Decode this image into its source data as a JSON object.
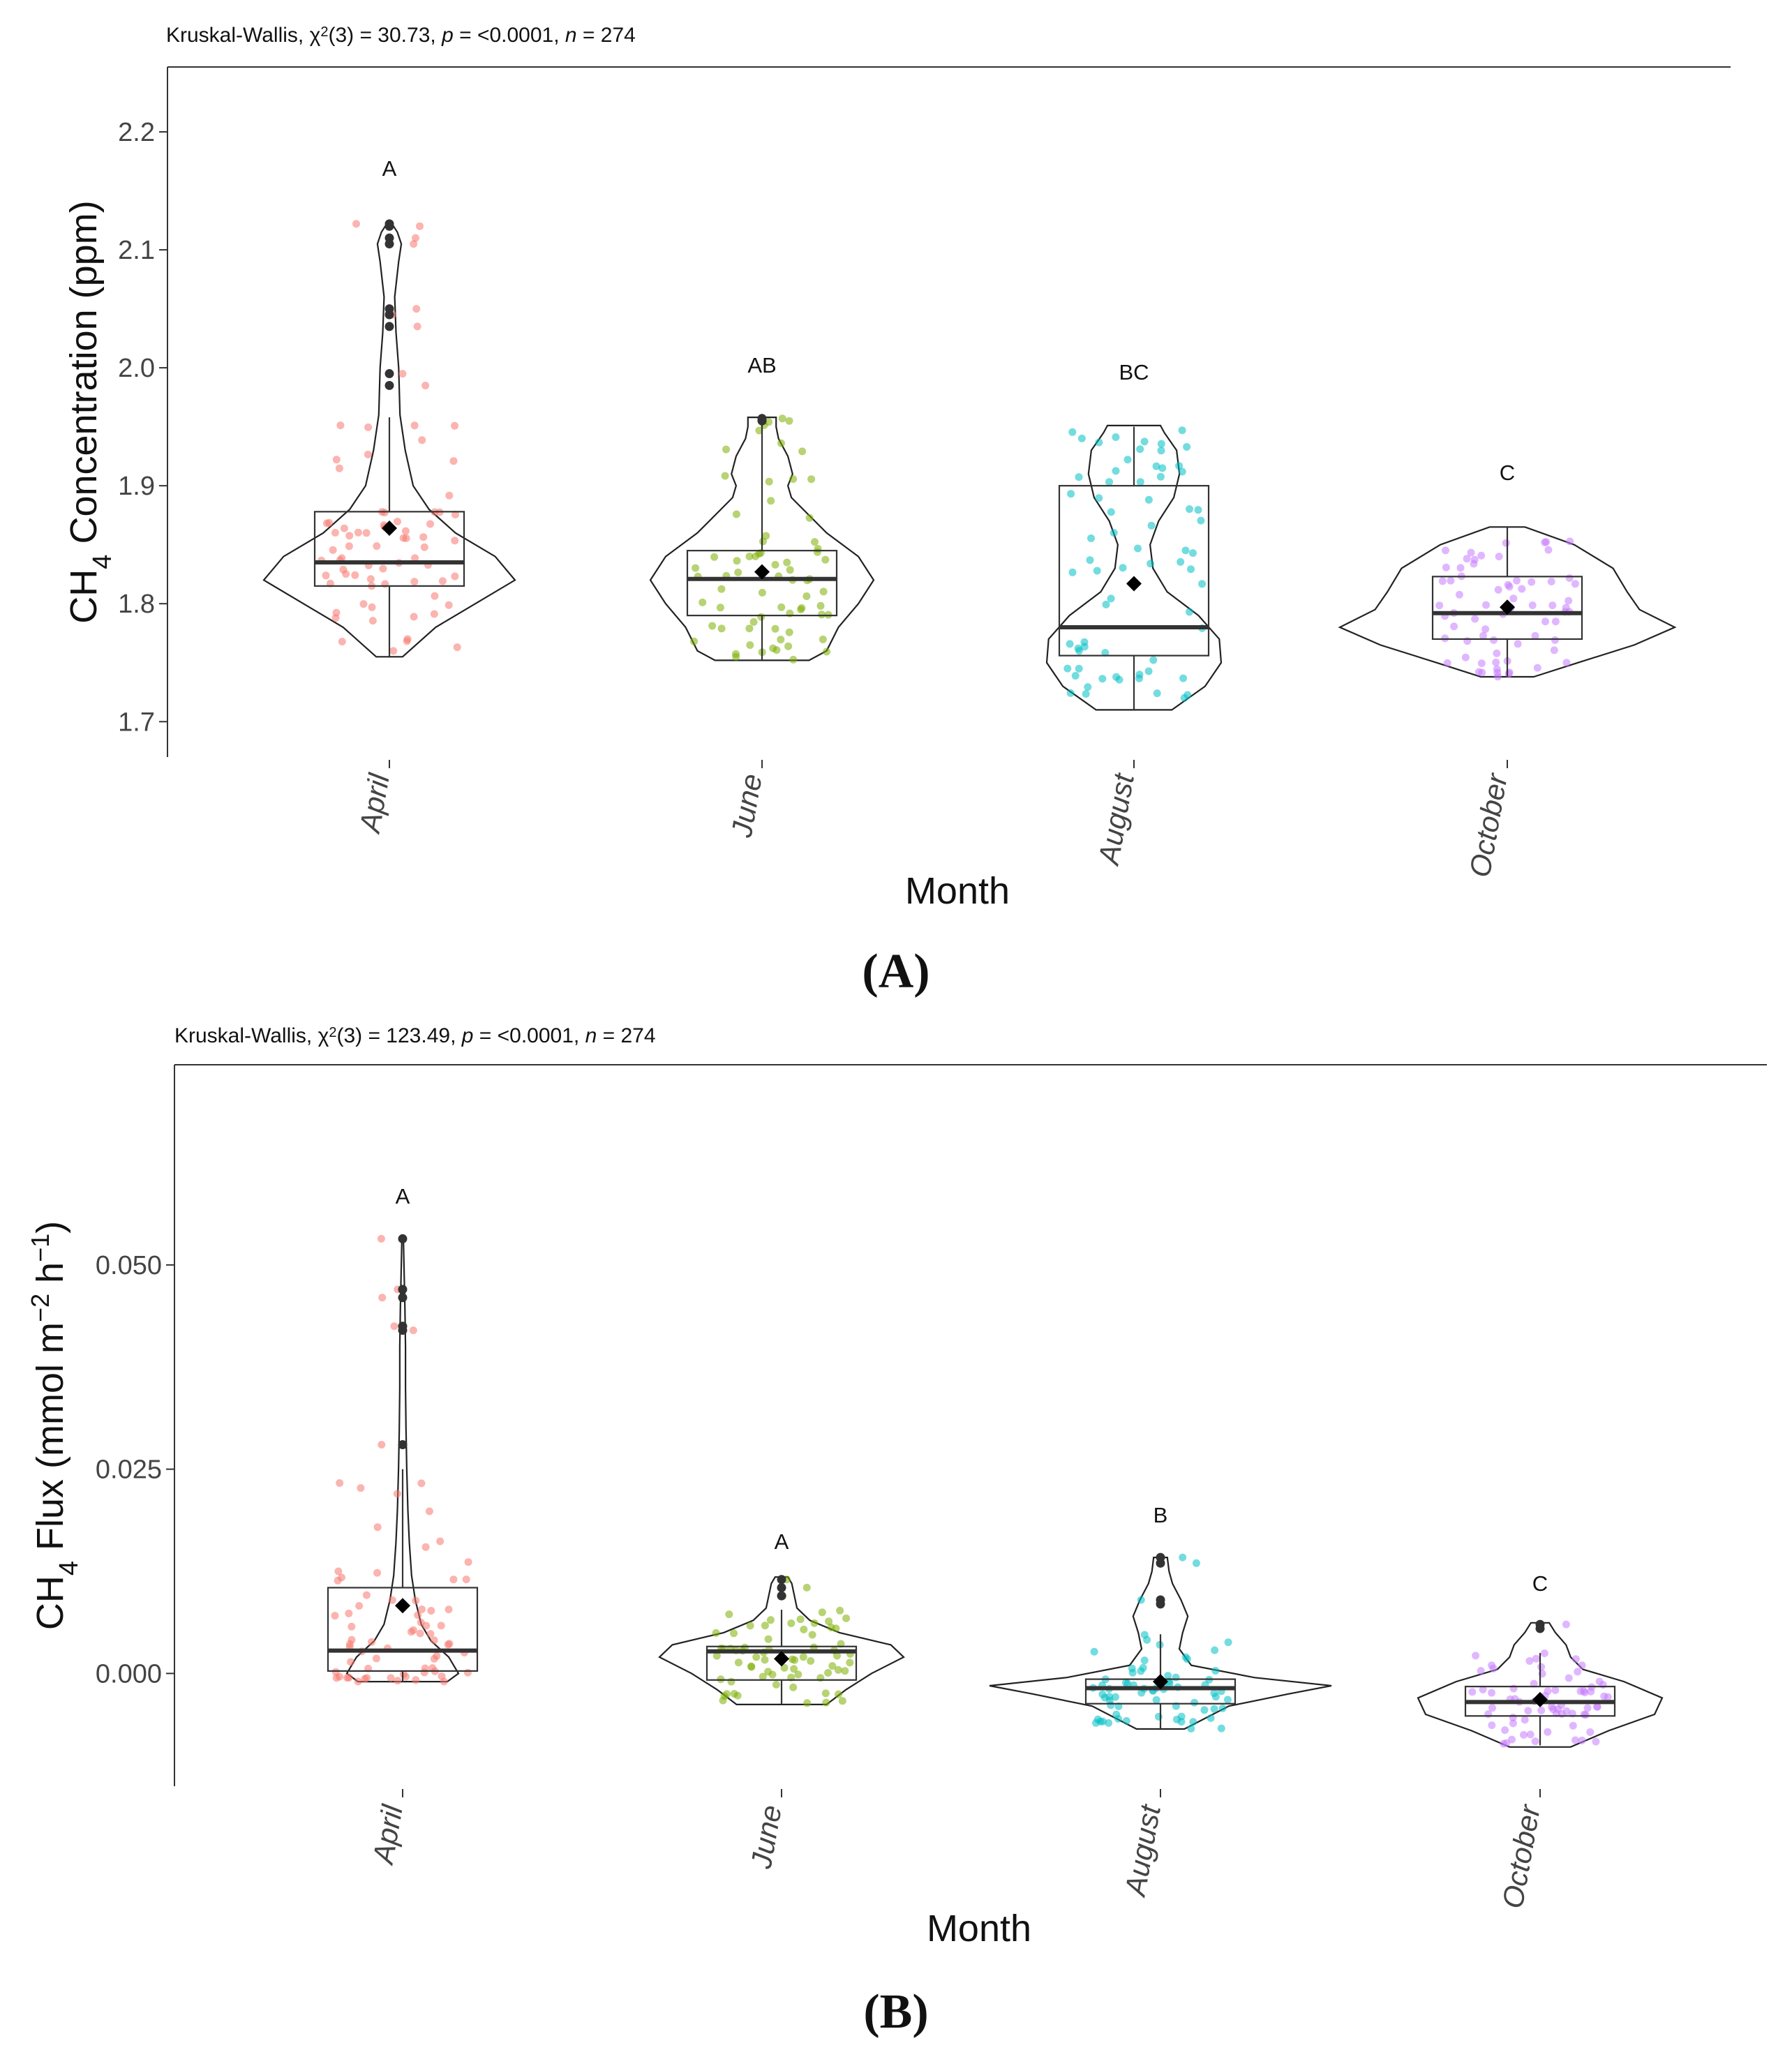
{
  "chart_data": [
    {
      "type": "violin",
      "panel_label": "(A)",
      "stat_parts": [
        "Kruskal-Wallis, ",
        "χ",
        "2",
        "(3) = 30.73, ",
        "p",
        " = <0.0001, ",
        "n",
        " = 274"
      ],
      "ylabel_parts": [
        "CH",
        "4",
        " Concentration (ppm)"
      ],
      "xlabel": "Month",
      "ylim": [
        1.67,
        2.255
      ],
      "yticks": [
        1.7,
        1.8,
        1.9,
        2.0,
        2.1,
        2.2
      ],
      "ytick_labels": [
        "1.7",
        "1.8",
        "1.9",
        "2.0",
        "2.1",
        "2.2"
      ],
      "categories": [
        "April",
        "June",
        "August",
        "October"
      ],
      "colors": [
        "#F8766D",
        "#7CAE00",
        "#00BFC4",
        "#C77CFF"
      ],
      "groups": [
        {
          "name": "April",
          "letter": "A",
          "min": 1.755,
          "q1": 1.815,
          "median": 1.835,
          "q3": 1.878,
          "max": 1.958,
          "mean": 1.864,
          "outliers": [
            1.985,
            1.995,
            2.035,
            2.045,
            2.05,
            2.105,
            2.11,
            2.12,
            2.122
          ],
          "violin": [
            [
              1.755,
              0.1
            ],
            [
              1.78,
              0.35
            ],
            [
              1.8,
              0.65
            ],
            [
              1.82,
              0.95
            ],
            [
              1.84,
              0.8
            ],
            [
              1.86,
              0.5
            ],
            [
              1.88,
              0.3
            ],
            [
              1.9,
              0.18
            ],
            [
              1.93,
              0.12
            ],
            [
              1.96,
              0.08
            ],
            [
              2.0,
              0.07
            ],
            [
              2.03,
              0.05
            ],
            [
              2.06,
              0.04
            ],
            [
              2.09,
              0.07
            ],
            [
              2.105,
              0.09
            ],
            [
              2.115,
              0.06
            ],
            [
              2.122,
              0.02
            ]
          ]
        },
        {
          "name": "June",
          "letter": "AB",
          "min": 1.752,
          "q1": 1.79,
          "median": 1.821,
          "q3": 1.845,
          "max": 1.955,
          "mean": 1.827,
          "outliers": [
            1.955,
            1.957
          ],
          "violin": [
            [
              1.752,
              0.4
            ],
            [
              1.76,
              0.55
            ],
            [
              1.78,
              0.65
            ],
            [
              1.8,
              0.82
            ],
            [
              1.82,
              0.95
            ],
            [
              1.84,
              0.82
            ],
            [
              1.86,
              0.55
            ],
            [
              1.88,
              0.35
            ],
            [
              1.89,
              0.25
            ],
            [
              1.9,
              0.22
            ],
            [
              1.91,
              0.26
            ],
            [
              1.925,
              0.22
            ],
            [
              1.94,
              0.14
            ],
            [
              1.95,
              0.12
            ],
            [
              1.958,
              0.12
            ]
          ]
        },
        {
          "name": "August",
          "letter": "BC",
          "min": 1.71,
          "q1": 1.756,
          "median": 1.78,
          "q3": 1.9,
          "max": 1.95,
          "mean": 1.817,
          "outliers": [],
          "violin": [
            [
              1.71,
              0.4
            ],
            [
              1.73,
              0.75
            ],
            [
              1.75,
              0.92
            ],
            [
              1.77,
              0.9
            ],
            [
              1.79,
              0.68
            ],
            [
              1.81,
              0.35
            ],
            [
              1.83,
              0.2
            ],
            [
              1.85,
              0.17
            ],
            [
              1.87,
              0.26
            ],
            [
              1.89,
              0.42
            ],
            [
              1.91,
              0.48
            ],
            [
              1.93,
              0.45
            ],
            [
              1.945,
              0.32
            ],
            [
              1.951,
              0.28
            ]
          ]
        },
        {
          "name": "October",
          "letter": "C",
          "min": 1.738,
          "q1": 1.77,
          "median": 1.792,
          "q3": 1.823,
          "max": 1.865,
          "mean": 1.797,
          "outliers": [],
          "violin": [
            [
              1.738,
              0.15
            ],
            [
              1.75,
              0.4
            ],
            [
              1.765,
              0.72
            ],
            [
              1.78,
              0.95
            ],
            [
              1.795,
              0.75
            ],
            [
              1.81,
              0.68
            ],
            [
              1.83,
              0.6
            ],
            [
              1.85,
              0.38
            ],
            [
              1.865,
              0.1
            ]
          ]
        }
      ]
    },
    {
      "type": "violin",
      "panel_label": "(B)",
      "stat_parts": [
        "Kruskal-Wallis, ",
        "χ",
        "2",
        "(3) = 123.49, ",
        "p",
        " = <0.0001, ",
        "n",
        " = 274"
      ],
      "ylabel_parts": [
        "CH",
        "4",
        " Flux (mmol m",
        "−2",
        " h",
        "−1",
        ")"
      ],
      "xlabel": "Month",
      "ylim": [
        -0.0138,
        0.0745
      ],
      "yticks": [
        0.0,
        0.025,
        0.05
      ],
      "ytick_labels": [
        "0.000",
        "0.025",
        "0.050"
      ],
      "categories": [
        "April",
        "June",
        "August",
        "October"
      ],
      "colors": [
        "#F8766D",
        "#7CAE00",
        "#00BFC4",
        "#C77CFF"
      ],
      "groups": [
        {
          "name": "April",
          "letter": "A",
          "min": -0.001,
          "q1": 0.0003,
          "median": 0.0028,
          "q3": 0.0105,
          "max": 0.025,
          "mean": 0.0083,
          "outliers": [
            0.028,
            0.042,
            0.0425,
            0.046,
            0.047,
            0.0532
          ],
          "violin": [
            [
              -0.001,
              0.6
            ],
            [
              0.0,
              0.75
            ],
            [
              0.002,
              0.62
            ],
            [
              0.004,
              0.38
            ],
            [
              0.006,
              0.25
            ],
            [
              0.009,
              0.17
            ],
            [
              0.012,
              0.12
            ],
            [
              0.016,
              0.09
            ],
            [
              0.02,
              0.07
            ],
            [
              0.025,
              0.055
            ],
            [
              0.03,
              0.045
            ],
            [
              0.035,
              0.038
            ],
            [
              0.04,
              0.038
            ],
            [
              0.045,
              0.03
            ],
            [
              0.05,
              0.018
            ],
            [
              0.0532,
              0.01
            ]
          ]
        },
        {
          "name": "June",
          "letter": "A",
          "min": -0.0038,
          "q1": -0.0008,
          "median": 0.0027,
          "q3": 0.0033,
          "max": 0.0078,
          "mean": 0.0018,
          "outliers": [
            0.0095,
            0.0105,
            0.0115
          ],
          "violin": [
            [
              -0.0038,
              0.35
            ],
            [
              -0.002,
              0.5
            ],
            [
              0.0,
              0.7
            ],
            [
              0.002,
              0.95
            ],
            [
              0.0035,
              0.85
            ],
            [
              0.005,
              0.45
            ],
            [
              0.0065,
              0.22
            ],
            [
              0.008,
              0.12
            ],
            [
              0.0095,
              0.1
            ],
            [
              0.011,
              0.08
            ],
            [
              0.0118,
              0.05
            ]
          ]
        },
        {
          "name": "August",
          "letter": "B",
          "min": -0.0068,
          "q1": -0.0037,
          "median": -0.0018,
          "q3": -0.0007,
          "max": 0.0048,
          "mean": -0.001,
          "outliers": [
            0.0085,
            0.009,
            0.0135,
            0.0142
          ],
          "violin": [
            [
              -0.0068,
              0.14
            ],
            [
              -0.004,
              0.4
            ],
            [
              -0.0025,
              0.75
            ],
            [
              -0.0015,
              1.0
            ],
            [
              -0.0005,
              0.55
            ],
            [
              0.001,
              0.18
            ],
            [
              0.003,
              0.11
            ],
            [
              0.005,
              0.13
            ],
            [
              0.007,
              0.16
            ],
            [
              0.009,
              0.12
            ],
            [
              0.011,
              0.07
            ],
            [
              0.0125,
              0.05
            ],
            [
              0.0142,
              0.04
            ]
          ]
        },
        {
          "name": "October",
          "letter": "C",
          "min": -0.0088,
          "q1": -0.0052,
          "median": -0.0035,
          "q3": -0.0016,
          "max": 0.0025,
          "mean": -0.0032,
          "outliers": [
            0.0055,
            0.006
          ],
          "violin": [
            [
              -0.009,
              0.2
            ],
            [
              -0.007,
              0.45
            ],
            [
              -0.005,
              0.75
            ],
            [
              -0.003,
              0.8
            ],
            [
              -0.001,
              0.55
            ],
            [
              0.0005,
              0.28
            ],
            [
              0.002,
              0.2
            ],
            [
              0.0035,
              0.17
            ],
            [
              0.005,
              0.1
            ],
            [
              0.0062,
              0.06
            ]
          ]
        }
      ]
    }
  ]
}
